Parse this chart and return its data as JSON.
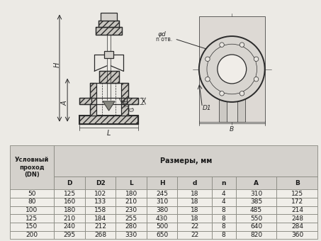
{
  "bg_color": "#eceae5",
  "drawing_bg": "#e8e6e1",
  "table_outer_bg": "#eceae5",
  "header_row_bg": "#d4d1cc",
  "header_col_bg": "#d4d1cc",
  "data_row_bg": "#f0eee9",
  "grid_color": "#888880",
  "line_color": "#2a2a2a",
  "text_color": "#1a1a1a",
  "col_headers": [
    "D",
    "D2",
    "L",
    "H",
    "d",
    "n",
    "A",
    "B"
  ],
  "dn_col_header": "Условный\nпроход\n(DN)",
  "size_header": "Размеры, мм",
  "rows": [
    [
      50,
      125,
      102,
      180,
      245,
      18,
      4,
      310,
      125
    ],
    [
      80,
      160,
      133,
      210,
      310,
      18,
      4,
      385,
      172
    ],
    [
      100,
      180,
      158,
      230,
      380,
      18,
      8,
      485,
      214
    ],
    [
      125,
      210,
      184,
      255,
      430,
      18,
      8,
      550,
      248
    ],
    [
      150,
      240,
      212,
      280,
      500,
      22,
      8,
      640,
      284
    ],
    [
      200,
      295,
      268,
      330,
      650,
      22,
      8,
      820,
      360
    ]
  ]
}
